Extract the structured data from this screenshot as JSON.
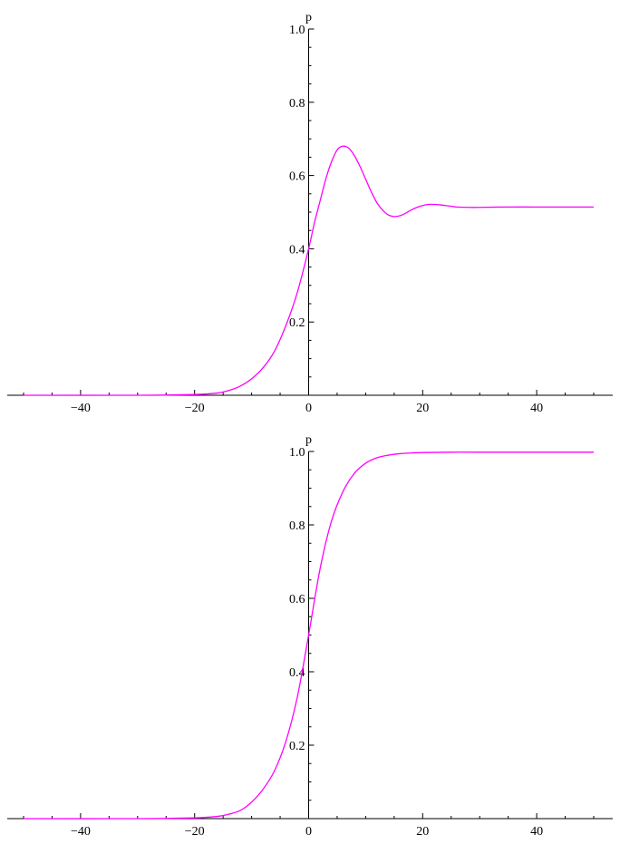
{
  "chart_data": [
    {
      "type": "line",
      "title": "",
      "xlabel": "",
      "ylabel": "p",
      "xlim": [
        -50,
        50
      ],
      "ylim": [
        0,
        1.0
      ],
      "xticks_major": [
        -40,
        -20,
        0,
        20,
        40
      ],
      "yticks_major": [
        0.2,
        0.4,
        0.6,
        0.8,
        1.0
      ],
      "xtick_labels": [
        "−40",
        "−20",
        "0",
        "20",
        "40"
      ],
      "ytick_labels": [
        "0.2",
        "0.4",
        "0.6",
        "0.8",
        "1.0"
      ],
      "series": [
        {
          "color": "#ff00ff",
          "x": [
            -50,
            -30,
            -20,
            -16,
            -14,
            -12,
            -10,
            -8,
            -6,
            -4,
            -2,
            0,
            1,
            2,
            3,
            4,
            5,
            6,
            7,
            8,
            9,
            10,
            11,
            12,
            13,
            14,
            15,
            16,
            17,
            18,
            19,
            20,
            21,
            22,
            23,
            24,
            25,
            26,
            28,
            30,
            35,
            40,
            45,
            50
          ],
          "y": [
            0.0,
            0.0,
            0.002,
            0.006,
            0.013,
            0.025,
            0.045,
            0.075,
            0.12,
            0.19,
            0.28,
            0.4,
            0.47,
            0.53,
            0.59,
            0.637,
            0.67,
            0.68,
            0.675,
            0.655,
            0.625,
            0.59,
            0.555,
            0.525,
            0.505,
            0.492,
            0.488,
            0.49,
            0.497,
            0.506,
            0.513,
            0.518,
            0.521,
            0.521,
            0.52,
            0.518,
            0.516,
            0.514,
            0.513,
            0.513,
            0.514,
            0.514,
            0.514,
            0.514
          ]
        }
      ]
    },
    {
      "type": "line",
      "title": "",
      "xlabel": "",
      "ylabel": "p",
      "xlim": [
        -50,
        50
      ],
      "ylim": [
        0,
        1.0
      ],
      "xticks_major": [
        -40,
        -20,
        0,
        20,
        40
      ],
      "yticks_major": [
        0.2,
        0.4,
        0.6,
        0.8,
        1.0
      ],
      "xtick_labels": [
        "−40",
        "−20",
        "0",
        "20",
        "40"
      ],
      "ytick_labels": [
        "0.2",
        "0.4",
        "0.6",
        "0.8",
        "1.0"
      ],
      "series": [
        {
          "color": "#ff00ff",
          "x": [
            -50,
            -30,
            -20,
            -16,
            -14,
            -12,
            -10,
            -8,
            -6,
            -4,
            -2,
            0,
            2,
            4,
            6,
            8,
            10,
            12,
            14,
            16,
            18,
            20,
            25,
            30,
            40,
            50
          ],
          "y": [
            0.0,
            0.0,
            0.002,
            0.006,
            0.012,
            0.022,
            0.045,
            0.08,
            0.13,
            0.21,
            0.33,
            0.5,
            0.68,
            0.81,
            0.89,
            0.94,
            0.968,
            0.983,
            0.99,
            0.994,
            0.996,
            0.997,
            0.998,
            0.998,
            0.998,
            0.998
          ]
        }
      ]
    }
  ]
}
